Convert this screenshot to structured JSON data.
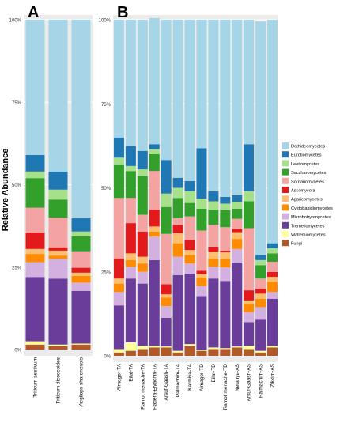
{
  "ylabel": "Relative Abundance",
  "legend": {
    "entries": [
      {
        "name": "Dothideomycetes",
        "color": "#a6d5e7"
      },
      {
        "name": "Eurotiomycetes",
        "color": "#1f78b4"
      },
      {
        "name": "Leotiomycetes",
        "color": "#a6e08a"
      },
      {
        "name": "Saccharomycetes",
        "color": "#33a02c"
      },
      {
        "name": "Sordariomycetes",
        "color": "#f4a3a3"
      },
      {
        "name": "Ascomycota",
        "color": "#e31a1c"
      },
      {
        "name": "Agaricomycetes",
        "color": "#fdbf6f"
      },
      {
        "name": "Cystobasidiomycetes",
        "color": "#ff8c00"
      },
      {
        "name": "Microbotryomycetes",
        "color": "#d4b0e0"
      },
      {
        "name": "Tremellomycetes",
        "color": "#6a3d9a"
      },
      {
        "name": "Wallemiomycetes",
        "color": "#ffff99"
      },
      {
        "name": "Fungi",
        "color": "#b15928"
      }
    ]
  },
  "chart_data": [
    {
      "type": "bar",
      "stacked": true,
      "panel_label": "A",
      "title": "",
      "xlabel": "",
      "ylabel": "Relative Abundance",
      "ylim": [
        0,
        100
      ],
      "yticks": [
        "0%",
        "25%",
        "50%",
        "75%",
        "100%"
      ],
      "grid": true,
      "legend_position": "right",
      "categories": [
        "Triticum aestivum",
        "Triticum dicoccoides",
        "Aegilops sharonensis"
      ],
      "series": [
        {
          "name": "Fungi",
          "values": [
            1.5,
            1.0,
            1.5
          ]
        },
        {
          "name": "Wallemiomycetes",
          "values": [
            1.0,
            0.5,
            0.3
          ]
        },
        {
          "name": "Tremellomycetes",
          "values": [
            19.5,
            20.0,
            16.0
          ]
        },
        {
          "name": "Microbotryomycetes",
          "values": [
            4.5,
            6.0,
            2.5
          ]
        },
        {
          "name": "Cystobasidiomycetes",
          "values": [
            2.5,
            1.0,
            2.0
          ]
        },
        {
          "name": "Agaricomycetes",
          "values": [
            1.5,
            1.5,
            1.0
          ]
        },
        {
          "name": "Ascomycota",
          "values": [
            5.0,
            1.0,
            1.5
          ]
        },
        {
          "name": "Sordariomycetes",
          "values": [
            7.5,
            9.0,
            5.0
          ]
        },
        {
          "name": "Saccharomycetes",
          "values": [
            9.0,
            5.5,
            4.5
          ]
        },
        {
          "name": "Leotiomycetes",
          "values": [
            2.0,
            3.0,
            1.5
          ]
        },
        {
          "name": "Eurotiomycetes",
          "values": [
            5.0,
            5.5,
            4.0
          ]
        },
        {
          "name": "Dothideomycetes",
          "values": [
            41.0,
            46.0,
            60.2
          ]
        }
      ]
    },
    {
      "type": "bar",
      "stacked": true,
      "panel_label": "B",
      "title": "",
      "xlabel": "",
      "ylabel": "",
      "ylim": [
        0,
        100
      ],
      "yticks": [
        "0%",
        "25%",
        "50%",
        "75%",
        "100%"
      ],
      "grid": true,
      "legend_position": "right",
      "categories": [
        "Almagor-TA",
        "Eilat-TA",
        "Ramot menache-TA",
        "Hadera-Elyachin-TA",
        "Arsuf-Gaash-TA",
        "Palmachim-TA",
        "Karmiya-TA",
        "Almagor-TD",
        "Eilat-TD",
        "Ramot menache-TD",
        "Netanya-AS",
        "Arsuf-Gaash-AS",
        "Palmachim-AS",
        "Zikkim-AS"
      ],
      "series": [
        {
          "name": "Fungi",
          "values": [
            1.0,
            1.5,
            2.0,
            2.5,
            2.5,
            1.0,
            3.0,
            1.5,
            2.0,
            2.0,
            2.5,
            2.0,
            1.0,
            2.5
          ]
        },
        {
          "name": "Wallemiomycetes",
          "values": [
            1.0,
            2.5,
            1.0,
            0.5,
            0.3,
            0.5,
            0.5,
            0.3,
            0.5,
            0.3,
            0.3,
            1.0,
            0.5,
            0.5
          ]
        },
        {
          "name": "Tremellomycetes",
          "values": [
            13.0,
            19.0,
            18.5,
            25.5,
            8.5,
            22.5,
            21.0,
            16.0,
            20.5,
            20.0,
            25.0,
            7.0,
            9.5,
            14.0
          ]
        },
        {
          "name": "Microbotryomycetes",
          "values": [
            4.0,
            3.5,
            3.5,
            7.0,
            3.5,
            5.5,
            3.0,
            3.0,
            3.5,
            4.0,
            4.0,
            3.0,
            3.5,
            2.0
          ]
        },
        {
          "name": "Cystobasidiomycetes",
          "values": [
            2.5,
            2.0,
            2.5,
            1.5,
            2.5,
            4.0,
            2.5,
            2.5,
            2.5,
            2.5,
            3.0,
            2.5,
            2.5,
            3.0
          ]
        },
        {
          "name": "Agaricomycetes",
          "values": [
            1.5,
            2.0,
            2.0,
            1.5,
            1.0,
            3.0,
            1.5,
            1.0,
            2.0,
            2.0,
            2.0,
            1.0,
            1.5,
            1.5
          ]
        },
        {
          "name": "Ascomycota",
          "values": [
            6.0,
            9.0,
            7.5,
            5.0,
            3.0,
            2.5,
            3.0,
            1.0,
            1.5,
            0.5,
            1.0,
            3.0,
            1.5,
            1.5
          ]
        },
        {
          "name": "Sordariomycetes",
          "values": [
            18.0,
            7.5,
            5.0,
            11.5,
            15.0,
            2.0,
            7.0,
            12.0,
            6.5,
            7.0,
            3.0,
            18.5,
            3.0,
            3.0
          ]
        },
        {
          "name": "Saccharomycetes",
          "values": [
            10.0,
            8.0,
            11.5,
            5.0,
            8.0,
            6.0,
            4.0,
            6.5,
            4.5,
            5.0,
            3.0,
            8.0,
            4.0,
            2.5
          ]
        },
        {
          "name": "Leotiomycetes",
          "values": [
            2.0,
            1.5,
            2.0,
            1.5,
            4.0,
            3.0,
            3.5,
            3.0,
            2.5,
            2.0,
            2.0,
            3.0,
            1.5,
            1.5
          ]
        },
        {
          "name": "Eurotiomycetes",
          "values": [
            6.0,
            6.0,
            5.5,
            1.5,
            10.0,
            3.0,
            3.0,
            15.0,
            3.0,
            2.0,
            2.0,
            14.0,
            1.5,
            1.5
          ]
        },
        {
          "name": "Dothideomycetes",
          "values": [
            35.0,
            37.5,
            39.0,
            37.5,
            41.7,
            47.0,
            48.0,
            38.2,
            51.0,
            52.7,
            52.2,
            37.0,
            69.5,
            66.5
          ]
        }
      ]
    }
  ]
}
